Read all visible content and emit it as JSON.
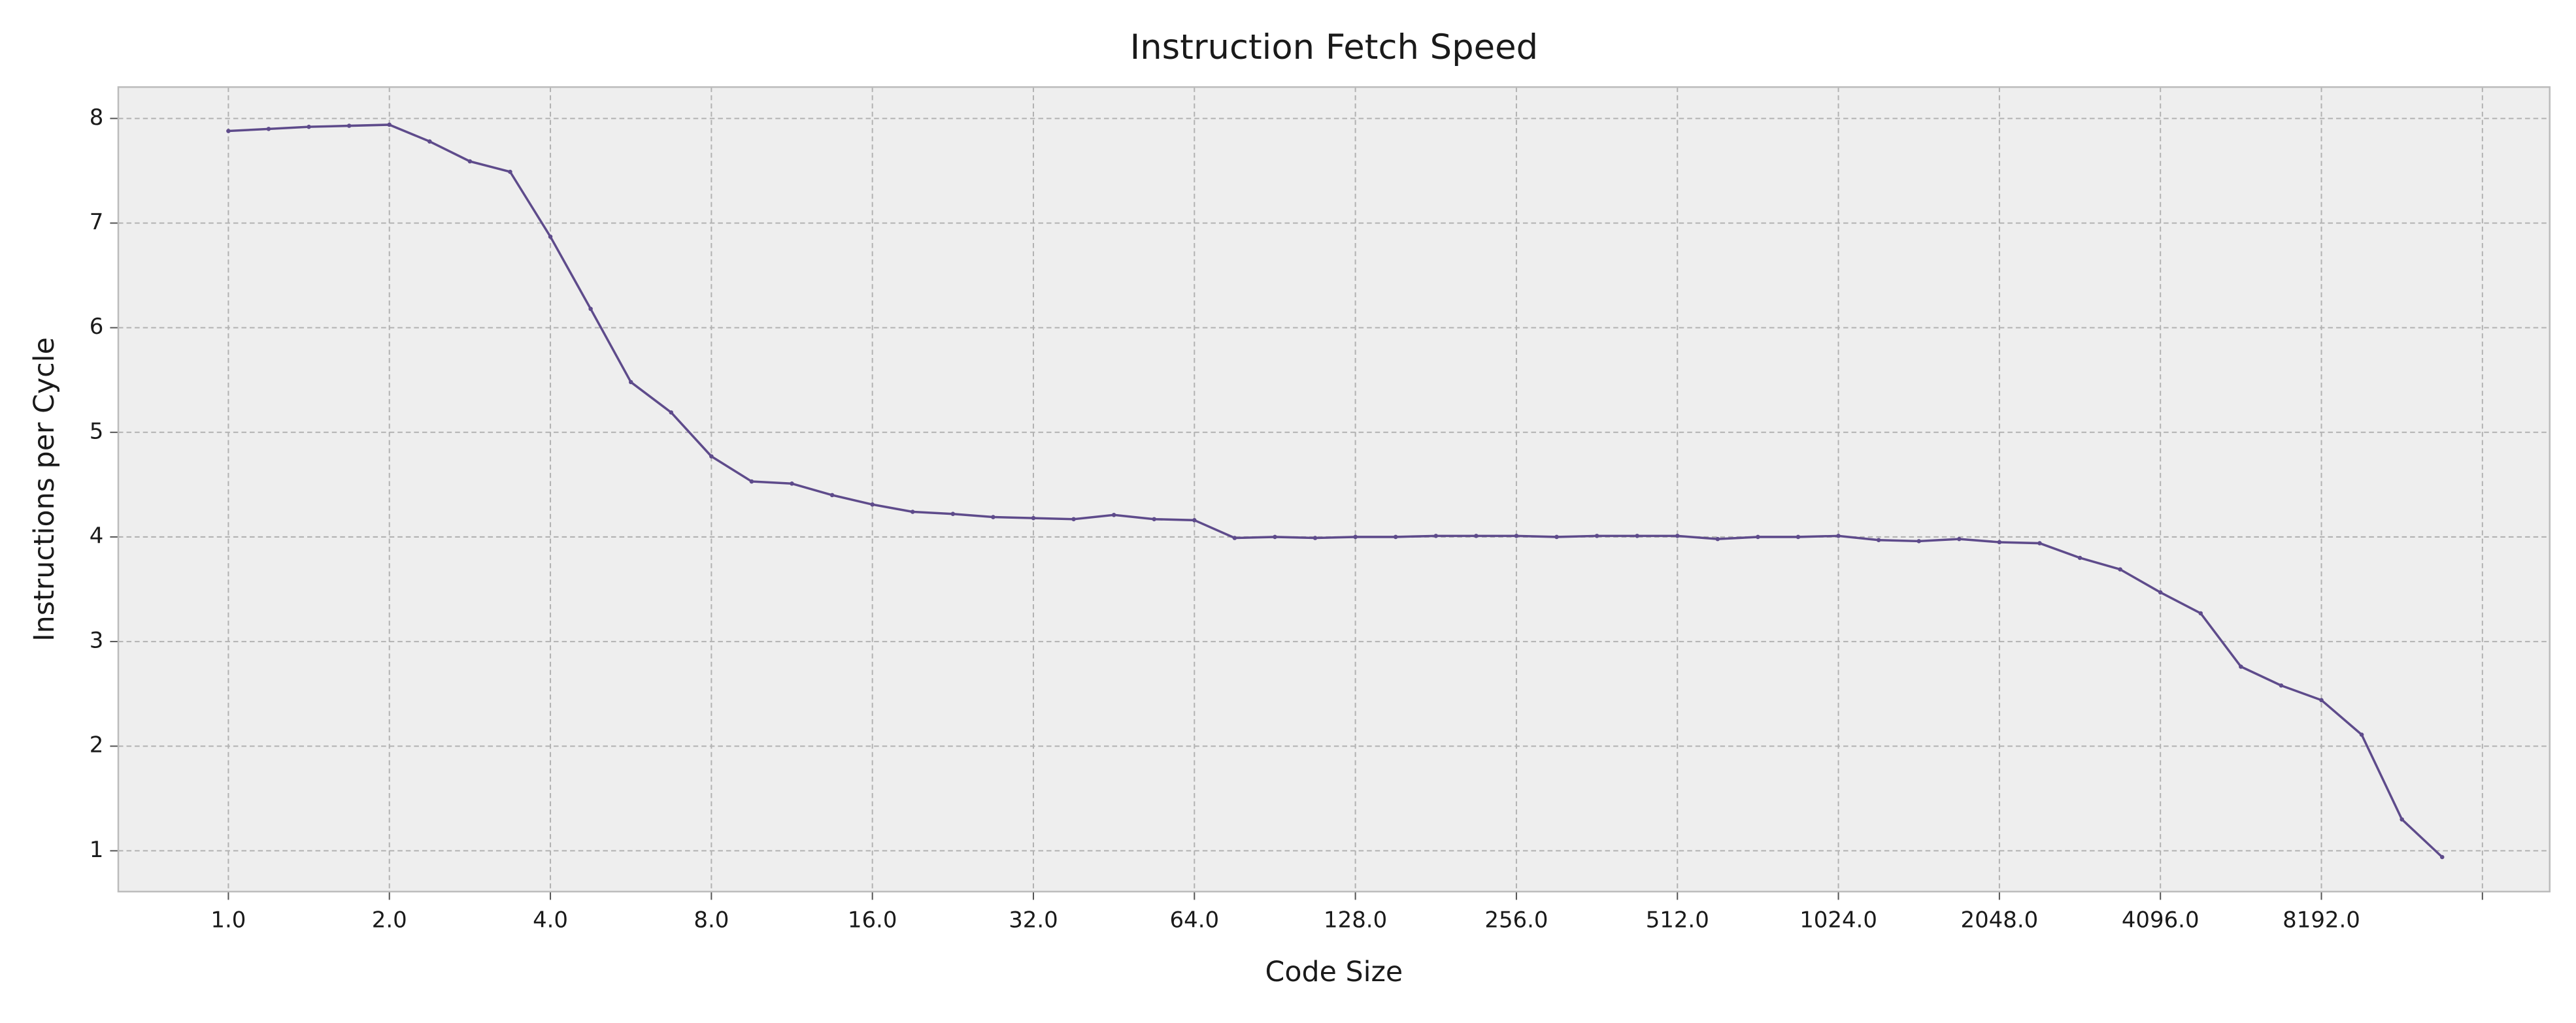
{
  "chart_data": {
    "type": "line",
    "title": "Instruction Fetch Speed",
    "x_label": "Code Size",
    "y_label": "Instructions per Cycle",
    "x": [
      1,
      1.1892,
      1.4142,
      1.6818,
      2,
      2.3784,
      2.8284,
      3.3636,
      4,
      4.7568,
      5.6569,
      6.7272,
      8,
      9.5137,
      11.3137,
      13.4543,
      16,
      19.0273,
      22.6274,
      26.9087,
      32,
      38.0546,
      45.2548,
      53.8174,
      64,
      76.1093,
      90.5097,
      107.6347,
      128,
      152.2185,
      181.0193,
      215.2694,
      256,
      304.437,
      362.0387,
      430.5389,
      512,
      608.874,
      724.0773,
      861.0779,
      1024,
      1217.748,
      1448.1547,
      1722.1558,
      2048,
      2435.496,
      2896.3094,
      3444.3116,
      4096,
      4870.992,
      5792.6188,
      6888.6232,
      8192,
      9741.984,
      11585.2375,
      13777.2463
    ],
    "values": [
      7.88,
      7.9,
      7.92,
      7.93,
      7.94,
      7.78,
      7.59,
      7.49,
      6.87,
      6.18,
      5.48,
      5.19,
      4.77,
      4.53,
      4.51,
      4.4,
      4.31,
      4.24,
      4.22,
      4.19,
      4.18,
      4.17,
      4.21,
      4.17,
      4.16,
      3.99,
      4.0,
      3.99,
      4.0,
      4.0,
      4.01,
      4.01,
      4.01,
      4.0,
      4.01,
      4.01,
      4.01,
      3.98,
      4.0,
      4.0,
      4.01,
      3.97,
      3.96,
      3.98,
      3.95,
      3.94,
      3.8,
      3.69,
      3.47,
      3.27,
      2.76,
      2.58,
      2.44,
      2.11,
      1.3,
      0.94
    ],
    "color": "#5e4b8b",
    "xscale": "log",
    "xlog_base": 2,
    "xlim": [
      0.6225,
      21890
    ],
    "ylim": [
      0.61,
      8.3
    ],
    "xticks": [
      {
        "value": 1,
        "label": "1.0"
      },
      {
        "value": 2,
        "label": "2.0"
      },
      {
        "value": 4,
        "label": "4.0"
      },
      {
        "value": 8,
        "label": "8.0"
      },
      {
        "value": 16,
        "label": "16.0"
      },
      {
        "value": 32,
        "label": "32.0"
      },
      {
        "value": 64,
        "label": "64.0"
      },
      {
        "value": 128,
        "label": "128.0"
      },
      {
        "value": 256,
        "label": "256.0"
      },
      {
        "value": 512,
        "label": "512.0"
      },
      {
        "value": 1024,
        "label": "1024.0"
      },
      {
        "value": 2048,
        "label": "2048.0"
      },
      {
        "value": 4096,
        "label": "4096.0"
      },
      {
        "value": 8192,
        "label": "8192.0"
      },
      {
        "value": 16384,
        "label": null
      }
    ],
    "yticks": [
      1,
      2,
      3,
      4,
      5,
      6,
      7,
      8
    ],
    "grid": true
  }
}
